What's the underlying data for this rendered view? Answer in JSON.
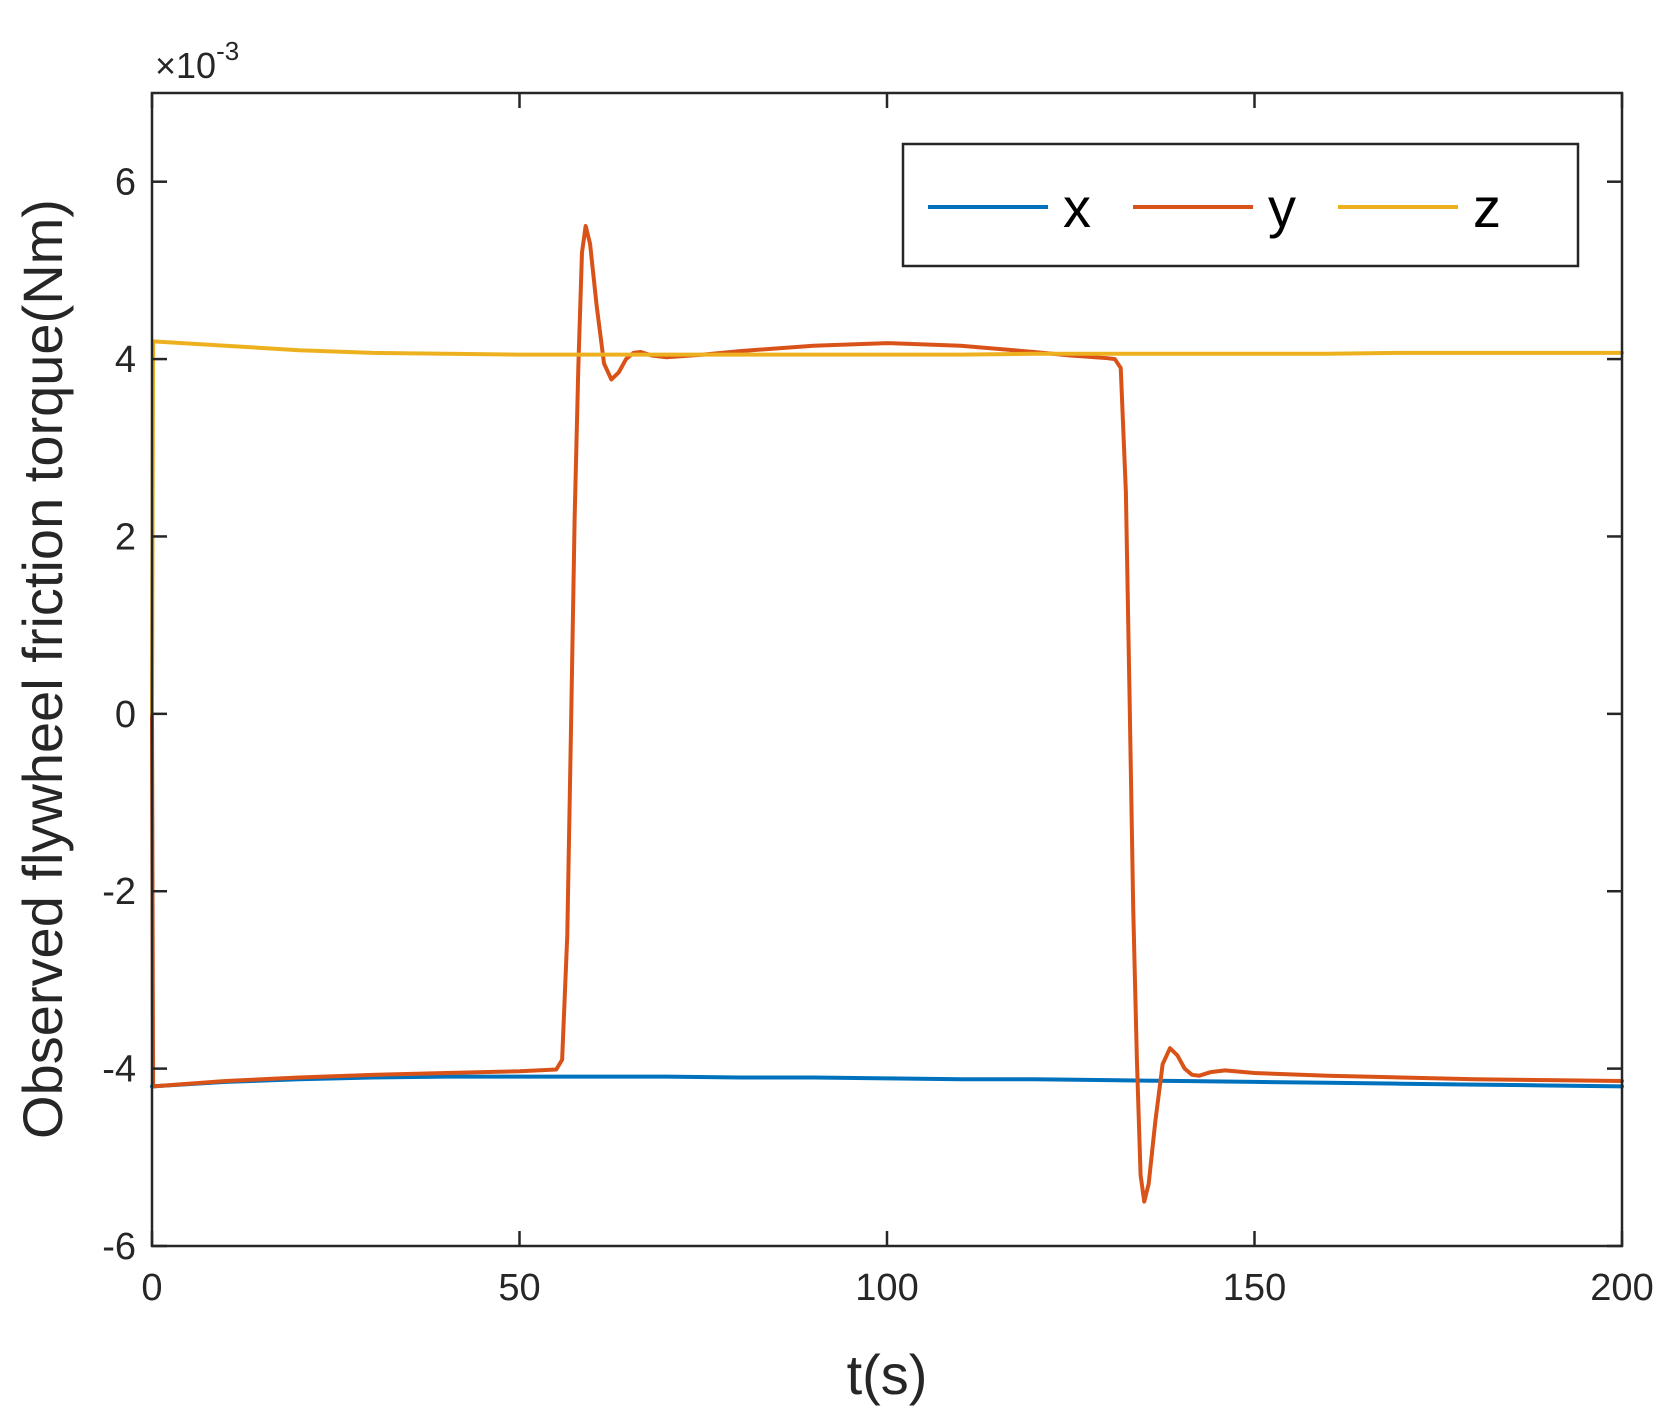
{
  "chart_data": {
    "type": "line",
    "title": "",
    "xlabel": "t(s)",
    "ylabel": "Observed flywheel friction torque(Nm)",
    "xlim": [
      0,
      200
    ],
    "ylim": [
      -6,
      7
    ],
    "xticks": [
      0,
      50,
      100,
      150,
      200
    ],
    "xtick_labels": [
      "0",
      "50",
      "100",
      "150",
      "200"
    ],
    "yticks": [
      -6,
      -4,
      -2,
      0,
      2,
      4,
      6
    ],
    "ytick_labels": [
      "-6",
      "-4",
      "-2",
      "0",
      "2",
      "4",
      "6"
    ],
    "y_multiplier": {
      "base": "×10",
      "exponent": "-3"
    },
    "grid": false,
    "legend": {
      "position": "top-right",
      "orientation": "horizontal"
    },
    "series": [
      {
        "name": "x",
        "color": "#0072BD",
        "points": [
          [
            0,
            -4.2
          ],
          [
            10,
            -4.15
          ],
          [
            20,
            -4.12
          ],
          [
            30,
            -4.1
          ],
          [
            40,
            -4.09
          ],
          [
            50,
            -4.09
          ],
          [
            60,
            -4.09
          ],
          [
            70,
            -4.09
          ],
          [
            80,
            -4.1
          ],
          [
            90,
            -4.1
          ],
          [
            100,
            -4.11
          ],
          [
            110,
            -4.12
          ],
          [
            120,
            -4.12
          ],
          [
            130,
            -4.13
          ],
          [
            140,
            -4.14
          ],
          [
            150,
            -4.15
          ],
          [
            160,
            -4.16
          ],
          [
            170,
            -4.17
          ],
          [
            180,
            -4.18
          ],
          [
            190,
            -4.19
          ],
          [
            200,
            -4.2
          ]
        ]
      },
      {
        "name": "y",
        "color": "#D95319",
        "points": [
          [
            0,
            0
          ],
          [
            0.15,
            -4.2
          ],
          [
            10,
            -4.14
          ],
          [
            20,
            -4.1
          ],
          [
            30,
            -4.07
          ],
          [
            40,
            -4.05
          ],
          [
            50,
            -4.03
          ],
          [
            55,
            -4.01
          ],
          [
            55.8,
            -3.9
          ],
          [
            56.5,
            -2.5
          ],
          [
            57,
            -0.2
          ],
          [
            57.5,
            2.2
          ],
          [
            58,
            3.9
          ],
          [
            58.5,
            5.2
          ],
          [
            59,
            5.5
          ],
          [
            59.6,
            5.3
          ],
          [
            60.5,
            4.6
          ],
          [
            61.5,
            3.95
          ],
          [
            62.5,
            3.77
          ],
          [
            63.5,
            3.85
          ],
          [
            64.5,
            4.0
          ],
          [
            65.5,
            4.07
          ],
          [
            66.5,
            4.08
          ],
          [
            68,
            4.04
          ],
          [
            70,
            4.02
          ],
          [
            75,
            4.05
          ],
          [
            80,
            4.09
          ],
          [
            90,
            4.15
          ],
          [
            100,
            4.18
          ],
          [
            110,
            4.15
          ],
          [
            120,
            4.08
          ],
          [
            125,
            4.04
          ],
          [
            130,
            4.01
          ],
          [
            131,
            4.0
          ],
          [
            131.8,
            3.9
          ],
          [
            132.5,
            2.5
          ],
          [
            133,
            0.2
          ],
          [
            133.5,
            -2.2
          ],
          [
            134,
            -3.9
          ],
          [
            134.5,
            -5.2
          ],
          [
            135,
            -5.5
          ],
          [
            135.6,
            -5.3
          ],
          [
            136.5,
            -4.6
          ],
          [
            137.5,
            -3.95
          ],
          [
            138.5,
            -3.77
          ],
          [
            139.5,
            -3.85
          ],
          [
            140.5,
            -4.0
          ],
          [
            141.5,
            -4.07
          ],
          [
            142.5,
            -4.08
          ],
          [
            144,
            -4.04
          ],
          [
            146,
            -4.02
          ],
          [
            150,
            -4.05
          ],
          [
            160,
            -4.08
          ],
          [
            170,
            -4.1
          ],
          [
            180,
            -4.12
          ],
          [
            190,
            -4.13
          ],
          [
            200,
            -4.14
          ]
        ]
      },
      {
        "name": "z",
        "color": "#EDB120",
        "points": [
          [
            0,
            0
          ],
          [
            0.15,
            4.2
          ],
          [
            10,
            4.15
          ],
          [
            20,
            4.1
          ],
          [
            30,
            4.07
          ],
          [
            40,
            4.06
          ],
          [
            50,
            4.05
          ],
          [
            60,
            4.05
          ],
          [
            70,
            4.05
          ],
          [
            80,
            4.05
          ],
          [
            90,
            4.05
          ],
          [
            100,
            4.05
          ],
          [
            110,
            4.05
          ],
          [
            120,
            4.06
          ],
          [
            130,
            4.06
          ],
          [
            140,
            4.06
          ],
          [
            150,
            4.06
          ],
          [
            160,
            4.06
          ],
          [
            170,
            4.07
          ],
          [
            180,
            4.07
          ],
          [
            190,
            4.07
          ],
          [
            200,
            4.07
          ]
        ]
      }
    ]
  }
}
